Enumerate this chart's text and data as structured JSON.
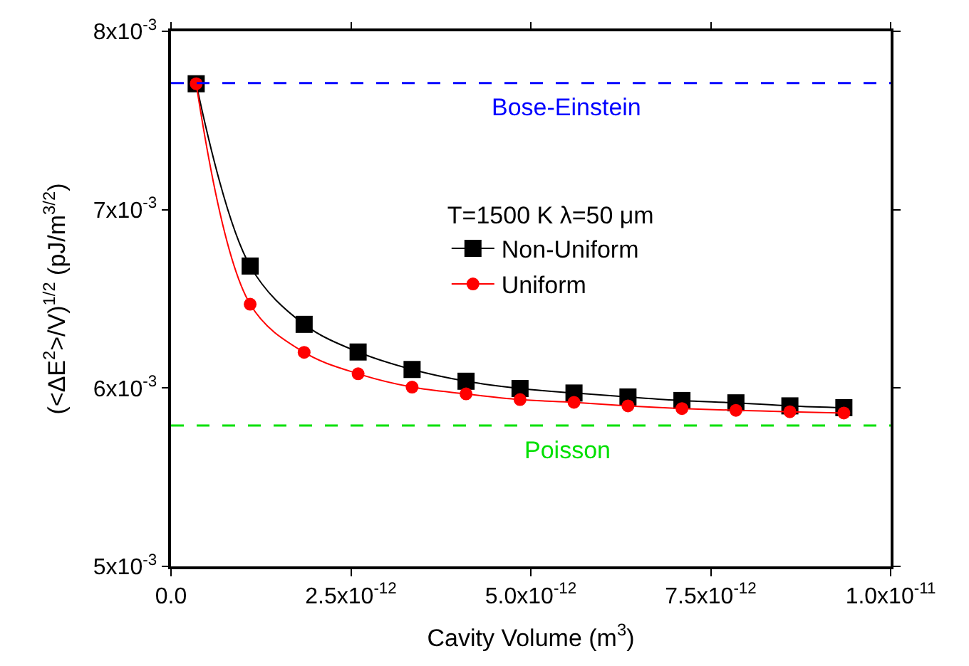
{
  "chart_data": {
    "type": "line",
    "xlabel": "Cavity Volume (m$^{3}$)",
    "ylabel": "(<ΔE$^{2}$>/V)$^{1/2}$ (pJ/m$^{3/2}$)",
    "legend_title": "T=1500 K λ=50 μm",
    "x": [
      3.5e-13,
      1.1e-12,
      1.85e-12,
      2.6e-12,
      3.35e-12,
      4.1e-12,
      4.85e-12,
      5.6e-12,
      6.35e-12,
      7.1e-12,
      7.85e-12,
      8.6e-12,
      9.35e-12
    ],
    "series": [
      {
        "name": "Non-Uniform",
        "color": "#000000",
        "marker": "square",
        "values": [
          0.007706,
          0.006684,
          0.006357,
          0.006202,
          0.006104,
          0.006038,
          0.005997,
          0.005972,
          0.00595,
          0.00593,
          0.005917,
          0.0059,
          0.00589
        ]
      },
      {
        "name": "Uniform",
        "color": "#ff0000",
        "marker": "circle",
        "values": [
          0.007706,
          0.00647,
          0.0062,
          0.00608,
          0.006005,
          0.005967,
          0.005935,
          0.00592,
          0.0059,
          0.005885,
          0.005875,
          0.005867,
          0.00586
        ]
      }
    ],
    "xlim": [
      0,
      1e-11
    ],
    "ylim": [
      0.005,
      0.008
    ],
    "xticks": [
      {
        "value": 0,
        "label": "0.0"
      },
      {
        "value": 2.5e-12,
        "label": "2.5x10$^{-12}$"
      },
      {
        "value": 5e-12,
        "label": "5.0x10$^{-12}$"
      },
      {
        "value": 7.5e-12,
        "label": "7.5x10$^{-12}$"
      },
      {
        "value": 1e-11,
        "label": "1.0x10$^{-11}$"
      }
    ],
    "yticks": [
      {
        "value": 0.005,
        "label": "5x10$^{-3}$"
      },
      {
        "value": 0.006,
        "label": "6x10$^{-3}$"
      },
      {
        "value": 0.007,
        "label": "7x10$^{-3}$"
      },
      {
        "value": 0.008,
        "label": "8x10$^{-3}$"
      }
    ],
    "ref_lines": [
      {
        "axis": "y",
        "value": 0.00771,
        "label": "Bose-Einstein",
        "color": "#0000ff",
        "line_style": "dashed"
      },
      {
        "axis": "y",
        "value": 0.00579,
        "label": "Poisson",
        "color": "#00e000",
        "line_style": "dashed"
      }
    ],
    "legend": "top right",
    "line_style": "solid"
  }
}
